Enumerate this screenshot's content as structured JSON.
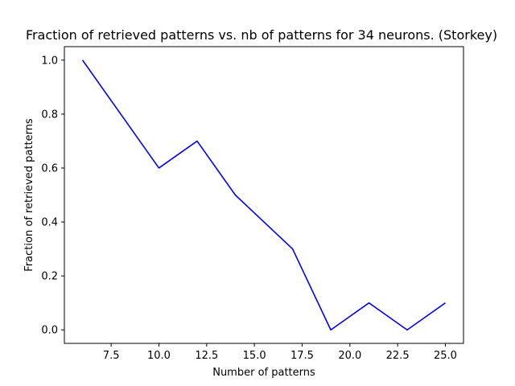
{
  "chart_data": {
    "type": "line",
    "title": "Fraction of retrieved patterns vs. nb of patterns for 34 neurons. (Storkey)",
    "xlabel": "Number of patterns",
    "ylabel": "Fraction of retrieved patterns",
    "xlim": [
      5.05,
      25.95
    ],
    "ylim": [
      -0.05,
      1.05
    ],
    "xticks": [
      7.5,
      10.0,
      12.5,
      15.0,
      17.5,
      20.0,
      22.5,
      25.0
    ],
    "xtick_labels": [
      "7.5",
      "10.0",
      "12.5",
      "15.0",
      "17.5",
      "20.0",
      "22.5",
      "25.0"
    ],
    "yticks": [
      0.0,
      0.2,
      0.4,
      0.6,
      0.8,
      1.0
    ],
    "ytick_labels": [
      "0.0",
      "0.2",
      "0.4",
      "0.6",
      "0.8",
      "1.0"
    ],
    "grid": false,
    "series": [
      {
        "color": "#0000ff",
        "x": [
          6,
          10,
          12,
          14,
          17,
          19,
          21,
          23,
          25
        ],
        "y": [
          1.0,
          0.6,
          0.7,
          0.5,
          0.3,
          0.0,
          0.1,
          0.0,
          0.1
        ]
      }
    ]
  }
}
